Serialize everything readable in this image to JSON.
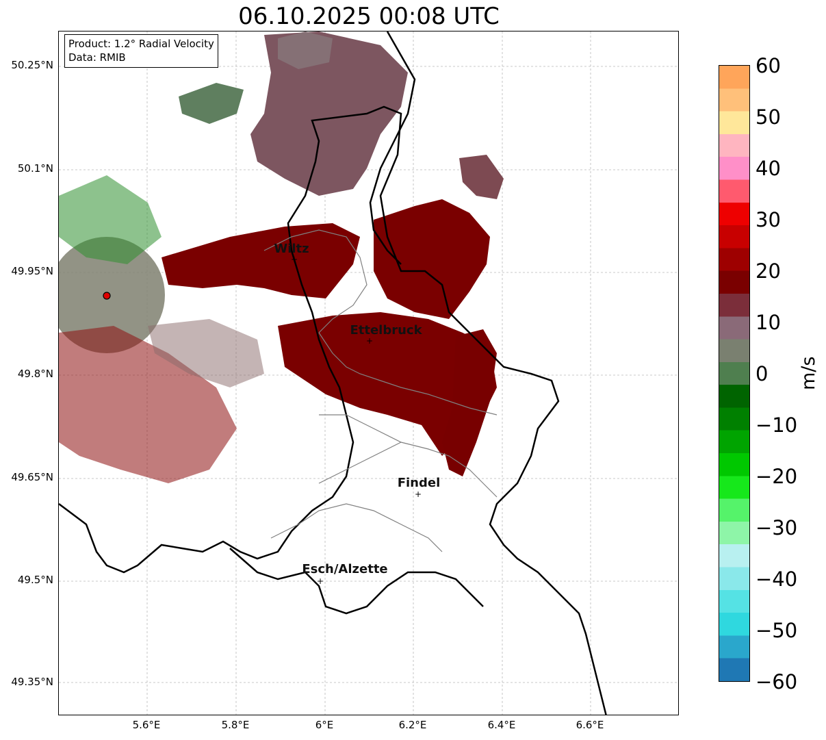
{
  "title": "06.10.2025 00:08 UTC",
  "info": {
    "product": "Product: 1.2° Radial Velocity",
    "data": "Data: RMIB"
  },
  "axes": {
    "lat_labels": [
      "50.25°N",
      "50.1°N",
      "49.95°N",
      "49.8°N",
      "49.65°N",
      "49.5°N",
      "49.35°N"
    ],
    "lon_labels": [
      "5.6°E",
      "5.8°E",
      "6°E",
      "6.2°E",
      "6.4°E",
      "6.6°E"
    ],
    "lat_values": [
      50.25,
      50.1,
      49.95,
      49.8,
      49.65,
      49.5,
      49.35
    ],
    "lon_values": [
      5.6,
      5.8,
      6.0,
      6.2,
      6.4,
      6.6
    ]
  },
  "cities": [
    {
      "name": "Wiltz",
      "lat": 49.966,
      "lon": 5.933
    },
    {
      "name": "Ettelbruck",
      "lat": 49.847,
      "lon": 6.104
    },
    {
      "name": "Findel",
      "lat": 49.626,
      "lon": 6.211
    },
    {
      "name": "Esch/Alzette",
      "lat": 49.497,
      "lon": 5.981
    }
  ],
  "radar_site": {
    "lat": 49.914,
    "lon": 5.505
  },
  "colorbar": {
    "unit": "m/s",
    "ticks": [
      "60",
      "50",
      "40",
      "30",
      "20",
      "10",
      "0",
      "−10",
      "−20",
      "−30",
      "−40",
      "−50",
      "−60"
    ],
    "min": -60,
    "max": 60,
    "colors": [
      "#1f78b4",
      "#2aa7cc",
      "#2fd8df",
      "#55e2e4",
      "#8ae8ea",
      "#b8f0f0",
      "#8ef5a8",
      "#55f36a",
      "#16e81b",
      "#00c800",
      "#00a400",
      "#008000",
      "#006400",
      "#4f7f4f",
      "#7a8070",
      "#8a6a78",
      "#7b2e3a",
      "#7a0000",
      "#9e0000",
      "#c80000",
      "#ee0000",
      "#ff5a6e",
      "#ff8fc8",
      "#ffb5c0",
      "#ffe79a",
      "#ffc07a",
      "#ffa55a"
    ]
  }
}
